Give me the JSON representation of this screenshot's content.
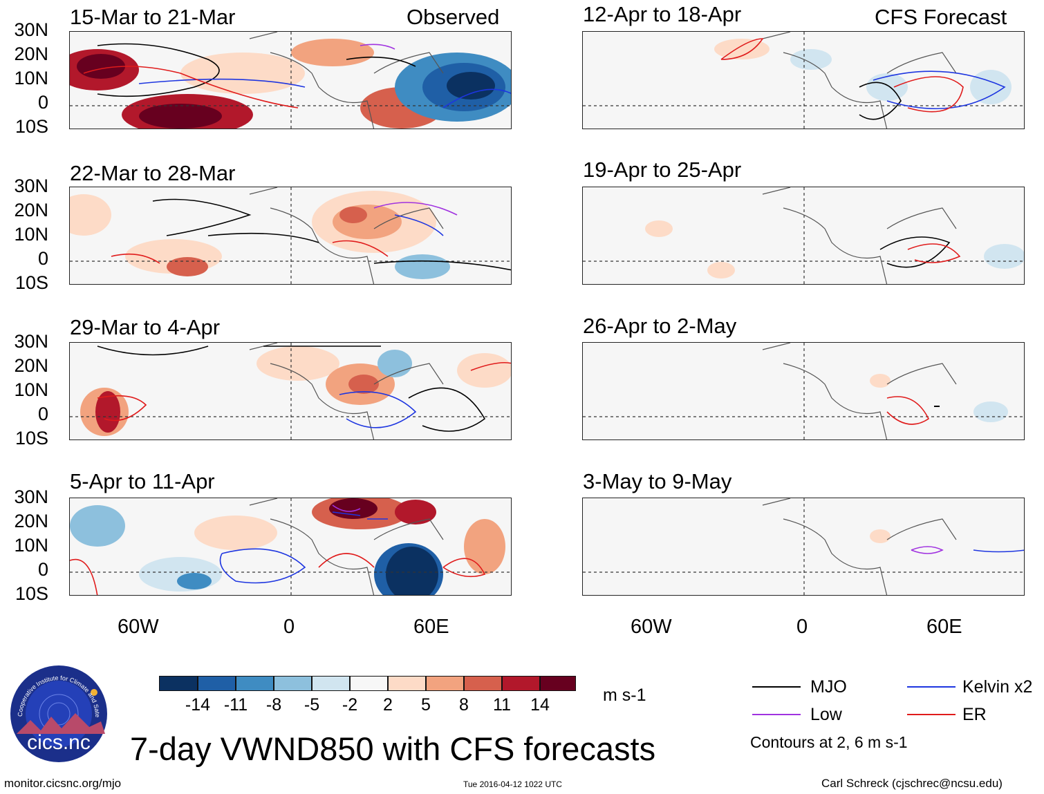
{
  "headers": {
    "observed": "Observed",
    "forecast": "CFS Forecast"
  },
  "panels": [
    {
      "id": "obs1",
      "title": "15-Mar to 21-Mar",
      "column": "observed"
    },
    {
      "id": "obs2",
      "title": "22-Mar to 28-Mar",
      "column": "observed"
    },
    {
      "id": "obs3",
      "title": "29-Mar to 4-Apr",
      "column": "observed"
    },
    {
      "id": "obs4",
      "title": "5-Apr to 11-Apr",
      "column": "observed"
    },
    {
      "id": "fc1",
      "title": "12-Apr to 18-Apr",
      "column": "forecast"
    },
    {
      "id": "fc2",
      "title": "19-Apr to 25-Apr",
      "column": "forecast"
    },
    {
      "id": "fc3",
      "title": "26-Apr to 2-May",
      "column": "forecast"
    },
    {
      "id": "fc4",
      "title": "3-May to 9-May",
      "column": "forecast"
    }
  ],
  "lat_labels": [
    "30N",
    "20N",
    "10N",
    "0",
    "10S"
  ],
  "lon_labels": [
    "60W",
    "0",
    "60E"
  ],
  "colorbar": {
    "colors": [
      "#0b3161",
      "#1f5fa6",
      "#3f8cc2",
      "#8dc0dd",
      "#d1e5f0",
      "#f7f7f7",
      "#fddbc7",
      "#f2a37f",
      "#d6604d",
      "#b2182b",
      "#67001f"
    ],
    "labels": [
      "-14",
      "-11",
      "-8",
      "-5",
      "-2",
      "2",
      "5",
      "8",
      "11",
      "14"
    ],
    "units": "m s-1"
  },
  "legend": {
    "items": [
      {
        "label": "MJO",
        "color": "#000000"
      },
      {
        "label": "Kelvin x2",
        "color": "#1d35e0"
      },
      {
        "label": "Low",
        "color": "#a032e0"
      },
      {
        "label": "ER",
        "color": "#e01b1b"
      }
    ],
    "note": "Contours at 2, 6 m s-1"
  },
  "logo": {
    "text": "cics.nc",
    "ring_text": "Cooperative Institute for Climate and Satellites"
  },
  "main_title": "7-day VWND850 with CFS forecasts",
  "footer": {
    "url": "monitor.cicsnc.org/mjo",
    "timestamp": "Tue 2016-04-12 1022 UTC",
    "author": "Carl Schreck (cjschrec@ncsu.edu)"
  }
}
